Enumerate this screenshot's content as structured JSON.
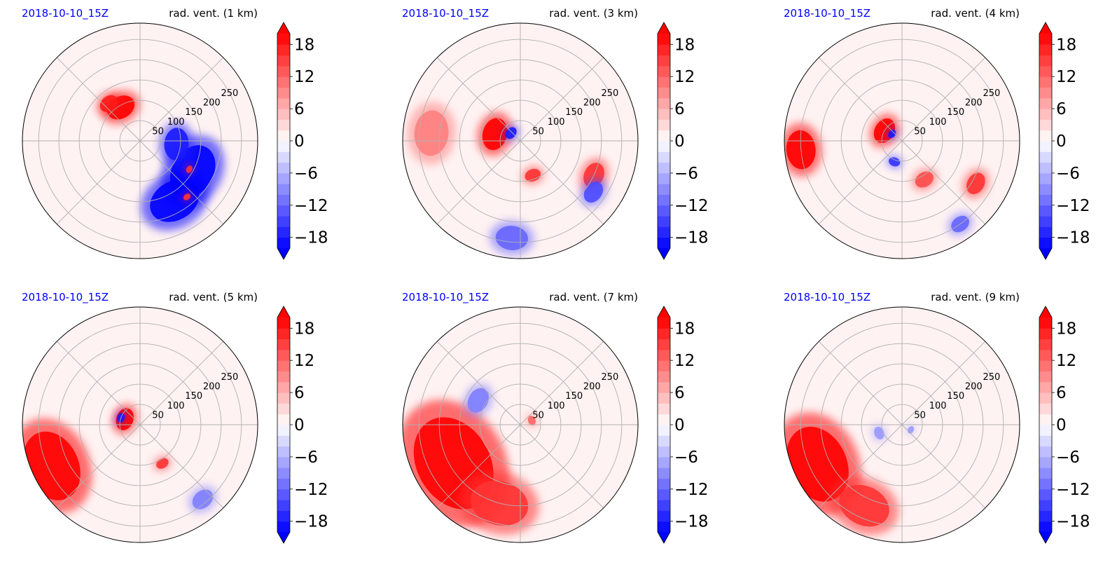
{
  "figure": {
    "date_label": "2018-10-10_15Z",
    "colors": {
      "date": "#0000ff",
      "positive": "#ff0000",
      "negative": "#0000ff",
      "neutral": "#ffffff",
      "grid": "#b0b0b0"
    }
  },
  "chart_data": [
    {
      "type": "heatmap",
      "projection": "polar",
      "date": "2018-10-10_15Z",
      "title": "rad. vent. (1 km)",
      "radial_ticks": [
        "50",
        "100",
        "150",
        "200",
        "250"
      ],
      "radial_tick_values": [
        50,
        100,
        150,
        200,
        250
      ],
      "rlim": [
        0,
        290
      ],
      "grid": true,
      "colorbar": {
        "ticks": [
          "18",
          "12",
          "6",
          "0",
          "−6",
          "−12",
          "−18"
        ],
        "tick_values": [
          18,
          12,
          6,
          0,
          -6,
          -12,
          -18
        ],
        "range": [
          -20,
          20
        ],
        "cmap": "bwr",
        "extend": "both"
      },
      "features": [
        {
          "sign": 1,
          "bearing": 330,
          "range": 95,
          "extent": 45,
          "strength": 1.0
        },
        {
          "sign": 1,
          "bearing": 320,
          "range": 120,
          "extent": 30,
          "strength": 0.9
        },
        {
          "sign": -1,
          "bearing": 120,
          "range": 150,
          "extent": 85,
          "strength": 1.0
        },
        {
          "sign": -1,
          "bearing": 150,
          "range": 170,
          "extent": 80,
          "strength": 1.0
        },
        {
          "sign": -1,
          "bearing": 95,
          "range": 90,
          "extent": 50,
          "strength": 0.9
        },
        {
          "sign": 1,
          "bearing": 120,
          "range": 140,
          "extent": 12,
          "strength": 0.8
        },
        {
          "sign": 1,
          "bearing": 140,
          "range": 180,
          "extent": 12,
          "strength": 0.8
        }
      ]
    },
    {
      "type": "heatmap",
      "projection": "polar",
      "date": "2018-10-10_15Z",
      "title": "rad. vent. (3 km)",
      "radial_ticks": [
        "50",
        "100",
        "150",
        "200",
        "250"
      ],
      "radial_tick_values": [
        50,
        100,
        150,
        200,
        250
      ],
      "rlim": [
        0,
        290
      ],
      "grid": true,
      "colorbar": {
        "ticks": [
          "18",
          "12",
          "6",
          "0",
          "−6",
          "−12",
          "−18"
        ],
        "tick_values": [
          18,
          12,
          6,
          0,
          -6,
          -12,
          -18
        ],
        "range": [
          -20,
          20
        ],
        "cmap": "bwr",
        "extend": "both"
      },
      "features": [
        {
          "sign": 1,
          "bearing": 285,
          "range": 65,
          "extent": 50,
          "strength": 1.0
        },
        {
          "sign": 1,
          "bearing": 275,
          "range": 220,
          "extent": 70,
          "strength": 0.5
        },
        {
          "sign": -1,
          "bearing": 310,
          "range": 30,
          "extent": 20,
          "strength": 0.9
        },
        {
          "sign": 1,
          "bearing": 115,
          "range": 200,
          "extent": 40,
          "strength": 0.8
        },
        {
          "sign": -1,
          "bearing": 125,
          "range": 220,
          "extent": 35,
          "strength": 0.7
        },
        {
          "sign": -1,
          "bearing": 185,
          "range": 240,
          "extent": 50,
          "strength": 0.6
        },
        {
          "sign": 1,
          "bearing": 160,
          "range": 90,
          "extent": 25,
          "strength": 0.8
        }
      ]
    },
    {
      "type": "heatmap",
      "projection": "polar",
      "date": "2018-10-10_15Z",
      "title": "rad. vent. (4 km)",
      "radial_ticks": [
        "50",
        "100",
        "150",
        "200",
        "250"
      ],
      "radial_tick_values": [
        50,
        100,
        150,
        200,
        250
      ],
      "rlim": [
        0,
        290
      ],
      "grid": true,
      "colorbar": {
        "ticks": [
          "18",
          "12",
          "6",
          "0",
          "−6",
          "−12",
          "−18"
        ],
        "tick_values": [
          18,
          12,
          6,
          0,
          -6,
          -12,
          -18
        ],
        "range": [
          -20,
          20
        ],
        "cmap": "bwr",
        "extend": "both"
      },
      "features": [
        {
          "sign": 1,
          "bearing": 300,
          "range": 50,
          "extent": 40,
          "strength": 1.0
        },
        {
          "sign": 1,
          "bearing": 265,
          "range": 250,
          "extent": 60,
          "strength": 1.0
        },
        {
          "sign": -1,
          "bearing": 305,
          "range": 30,
          "extent": 14,
          "strength": 0.9
        },
        {
          "sign": 1,
          "bearing": 120,
          "range": 210,
          "extent": 35,
          "strength": 0.8
        },
        {
          "sign": 1,
          "bearing": 150,
          "range": 110,
          "extent": 30,
          "strength": 0.7
        },
        {
          "sign": -1,
          "bearing": 200,
          "range": 55,
          "extent": 18,
          "strength": 0.8
        },
        {
          "sign": -1,
          "bearing": 145,
          "range": 250,
          "extent": 30,
          "strength": 0.6
        }
      ]
    },
    {
      "type": "heatmap",
      "projection": "polar",
      "date": "2018-10-10_15Z",
      "title": "rad. vent. (5 km)",
      "radial_ticks": [
        "50",
        "100",
        "150",
        "200",
        "250"
      ],
      "radial_tick_values": [
        50,
        100,
        150,
        200,
        250
      ],
      "rlim": [
        0,
        290
      ],
      "grid": true,
      "colorbar": {
        "ticks": [
          "18",
          "12",
          "6",
          "0",
          "−6",
          "−12",
          "−18"
        ],
        "tick_values": [
          18,
          12,
          6,
          0,
          -6,
          -12,
          -18
        ],
        "range": [
          -20,
          20
        ],
        "cmap": "bwr",
        "extend": "both"
      },
      "features": [
        {
          "sign": 1,
          "bearing": 245,
          "range": 240,
          "extent": 110,
          "strength": 1.0
        },
        {
          "sign": 1,
          "bearing": 290,
          "range": 40,
          "extent": 35,
          "strength": 1.0
        },
        {
          "sign": -1,
          "bearing": 290,
          "range": 50,
          "extent": 15,
          "strength": 0.9
        },
        {
          "sign": 1,
          "bearing": 150,
          "range": 110,
          "extent": 20,
          "strength": 0.8
        },
        {
          "sign": -1,
          "bearing": 140,
          "range": 240,
          "extent": 35,
          "strength": 0.5
        }
      ]
    },
    {
      "type": "heatmap",
      "projection": "polar",
      "date": "2018-10-10_15Z",
      "title": "rad. vent. (7 km)",
      "radial_ticks": [
        "50",
        "100",
        "150",
        "200",
        "250"
      ],
      "radial_tick_values": [
        50,
        100,
        150,
        200,
        250
      ],
      "rlim": [
        0,
        290
      ],
      "grid": true,
      "colorbar": {
        "ticks": [
          "18",
          "12",
          "6",
          "0",
          "−6",
          "−12",
          "−18"
        ],
        "tick_values": [
          18,
          12,
          6,
          0,
          -6,
          -12,
          -18
        ],
        "range": [
          -20,
          20
        ],
        "cmap": "bwr",
        "extend": "both"
      },
      "features": [
        {
          "sign": 1,
          "bearing": 240,
          "range": 190,
          "extent": 150,
          "strength": 1.0
        },
        {
          "sign": 1,
          "bearing": 195,
          "range": 200,
          "extent": 90,
          "strength": 0.8
        },
        {
          "sign": -1,
          "bearing": 300,
          "range": 120,
          "extent": 40,
          "strength": 0.5
        },
        {
          "sign": 1,
          "bearing": 70,
          "range": 30,
          "extent": 15,
          "strength": 0.6
        }
      ]
    },
    {
      "type": "heatmap",
      "projection": "polar",
      "date": "2018-10-10_15Z",
      "title": "rad. vent. (9 km)",
      "radial_ticks": [
        "50",
        "100",
        "150",
        "200",
        "250"
      ],
      "radial_tick_values": [
        50,
        100,
        150,
        200,
        250
      ],
      "rlim": [
        0,
        290
      ],
      "grid": true,
      "colorbar": {
        "ticks": [
          "18",
          "12",
          "6",
          "0",
          "−6",
          "−12",
          "−18"
        ],
        "tick_values": [
          18,
          12,
          6,
          0,
          -6,
          -12,
          -18
        ],
        "range": [
          -20,
          20
        ],
        "cmap": "bwr",
        "extend": "both"
      },
      "features": [
        {
          "sign": 1,
          "bearing": 245,
          "range": 230,
          "extent": 120,
          "strength": 1.0
        },
        {
          "sign": 1,
          "bearing": 205,
          "range": 220,
          "extent": 80,
          "strength": 0.8
        },
        {
          "sign": -1,
          "bearing": 250,
          "range": 60,
          "extent": 20,
          "strength": 0.4
        },
        {
          "sign": -1,
          "bearing": 120,
          "range": 25,
          "extent": 12,
          "strength": 0.4
        }
      ]
    }
  ]
}
